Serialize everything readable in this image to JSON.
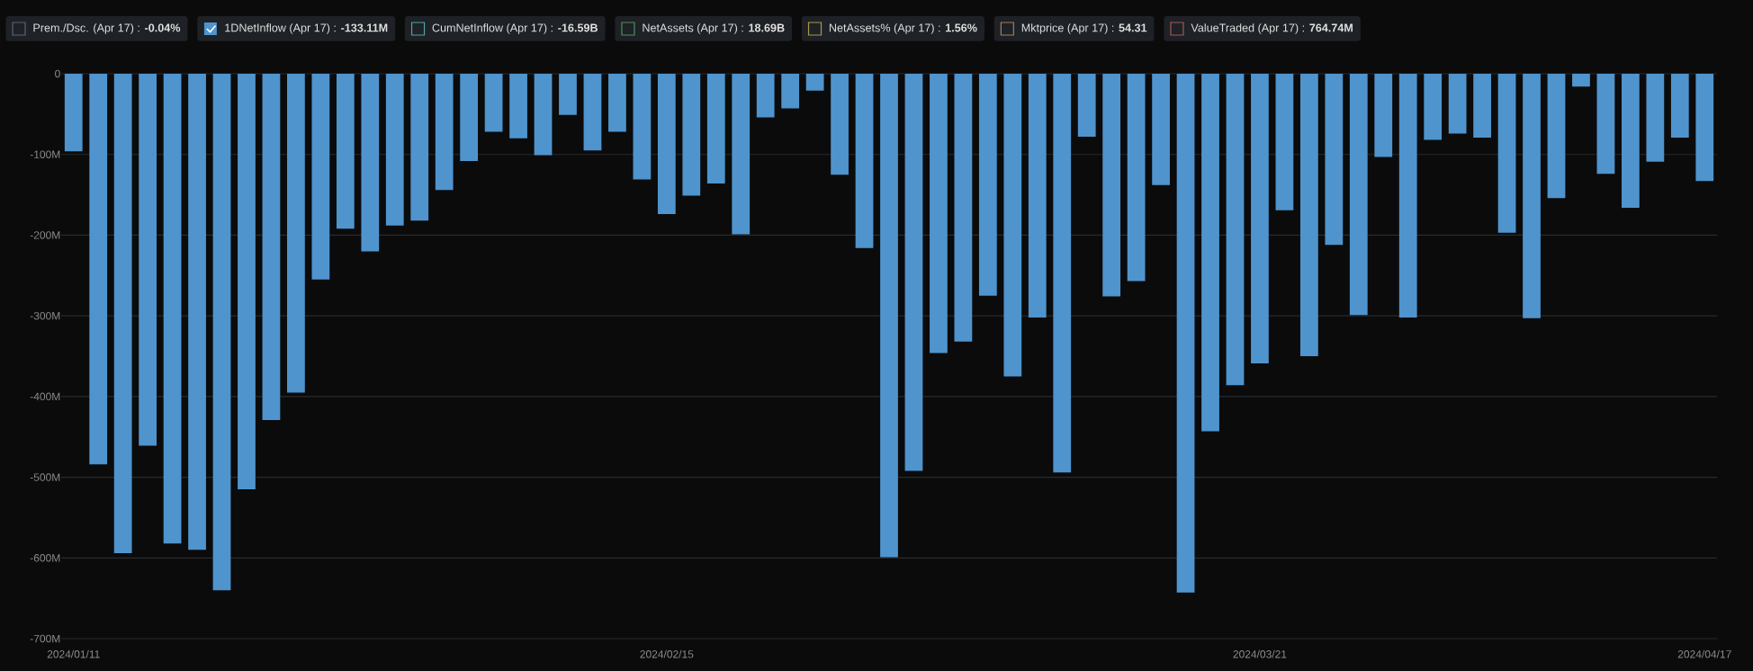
{
  "chart_data": {
    "type": "bar",
    "categories": [
      "2024/01/11",
      null,
      null,
      null,
      null,
      null,
      null,
      null,
      null,
      null,
      null,
      null,
      null,
      null,
      null,
      null,
      null,
      null,
      null,
      null,
      null,
      null,
      null,
      null,
      "2024/02/15",
      null,
      null,
      null,
      null,
      null,
      null,
      null,
      null,
      null,
      null,
      null,
      null,
      null,
      null,
      null,
      null,
      null,
      null,
      null,
      null,
      null,
      null,
      null,
      "2024/03/21",
      null,
      null,
      null,
      null,
      null,
      null,
      null,
      null,
      null,
      null,
      null,
      null,
      null,
      null,
      null,
      null,
      null,
      "2024/04/17"
    ],
    "series": [
      {
        "name": "1DNetInflow (Apr 17) : **-133.11M**",
        "color": "#4f94cd",
        "values": [
          -96,
          -484,
          -594,
          -461,
          -582,
          -590,
          -640,
          -515,
          -429,
          -395,
          -255,
          -192,
          -220,
          -188,
          -182,
          -144,
          -108,
          -72,
          -80,
          -101,
          -51,
          -95,
          -72,
          -131,
          -174,
          -151,
          -136,
          -199,
          -54,
          -43,
          -21,
          -125,
          -216,
          -599,
          -492,
          -346,
          -332,
          -275,
          -375,
          -302,
          -494,
          -78,
          -276,
          -257,
          -138,
          -643,
          -443,
          -386,
          -359,
          -169,
          -350,
          -212,
          -299,
          -103,
          -302,
          -82,
          -74,
          -79,
          -197,
          -303,
          -154,
          -16,
          -124,
          -166,
          -109,
          -79,
          -133
        ]
      }
    ],
    "ylim": [
      -700,
      0
    ],
    "yticks": [
      {
        "value": -700,
        "label": "-700M"
      },
      {
        "value": -600,
        "label": "-600M"
      },
      {
        "value": -500,
        "label": "-500M"
      },
      {
        "value": -400,
        "label": "-400M"
      },
      {
        "value": -300,
        "label": "-300M"
      },
      {
        "value": -200,
        "label": "-200M"
      },
      {
        "value": -100,
        "label": "-100M"
      },
      0
    ],
    "grid": "y",
    "legend": "top",
    "annotations": [
      "Prem./Dsc. (Apr 17) : **-0.04%**",
      "CumNetInflow (Apr 17) : **-16.59B**",
      "NetAssets (Apr 17) : **18.69B**",
      "NetAssets% (Apr 17) : **1.56%**",
      "Mktprice (Apr 17) : **54.31**",
      "ValueTraded (Apr 17) : **764.74M**"
    ]
  }
}
